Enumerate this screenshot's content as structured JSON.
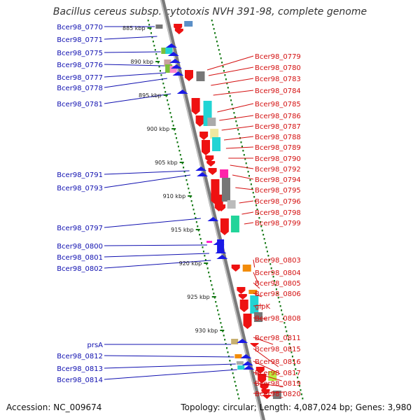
{
  "title": "Bacillus cereus subsp. cytotoxis NVH 391-98, complete genome",
  "footer": {
    "accession": "Accession: NC_009674",
    "summary": "Topology: circular; Length: 4,087,024 bp; Genes: 3,980"
  },
  "colors": {
    "forward_genes": "#ee1111",
    "reverse_genes": "#1a1ae6",
    "backbone": "#888888",
    "scale_ticks": "#117711",
    "label_left": "#1010b0",
    "label_right": "#d41010"
  },
  "kbp_labels": [
    {
      "text": "885 kbp",
      "kbp": 885
    },
    {
      "text": "890 kbp",
      "kbp": 890
    },
    {
      "text": "895 kbp",
      "kbp": 895
    },
    {
      "text": "900 kbp",
      "kbp": 900
    },
    {
      "text": "905 kbp",
      "kbp": 905
    },
    {
      "text": "910 kbp",
      "kbp": 910
    },
    {
      "text": "915 kbp",
      "kbp": 915
    },
    {
      "text": "920 kbp",
      "kbp": 920
    },
    {
      "text": "925 kbp",
      "kbp": 925
    },
    {
      "text": "930 kbp",
      "kbp": 930
    }
  ],
  "left_genes": [
    {
      "label": "Bcer98_0770"
    },
    {
      "label": "Bcer98_0771"
    },
    {
      "label": "Bcer98_0775"
    },
    {
      "label": "Bcer98_0776"
    },
    {
      "label": "Bcer98_0777"
    },
    {
      "label": "Bcer98_0778"
    },
    {
      "label": "Bcer98_0781"
    },
    {
      "label": "Bcer98_0791"
    },
    {
      "label": "Bcer98_0793"
    },
    {
      "label": "Bcer98_0797"
    },
    {
      "label": "Bcer98_0800"
    },
    {
      "label": "Bcer98_0801"
    },
    {
      "label": "Bcer98_0802"
    },
    {
      "label": "prsA"
    },
    {
      "label": "Bcer98_0812"
    },
    {
      "label": "Bcer98_0813"
    },
    {
      "label": "Bcer98_0814"
    }
  ],
  "right_genes": [
    {
      "label": "Bcer98_0779"
    },
    {
      "label": "Bcer98_0780"
    },
    {
      "label": "Bcer98_0783"
    },
    {
      "label": "Bcer98_0784"
    },
    {
      "label": "Bcer98_0785"
    },
    {
      "label": "Bcer98_0786"
    },
    {
      "label": "Bcer98_0787"
    },
    {
      "label": "Bcer98_0788"
    },
    {
      "label": "Bcer98_0789"
    },
    {
      "label": "Bcer98_0790"
    },
    {
      "label": "Bcer98_0792"
    },
    {
      "label": "Bcer98_0794"
    },
    {
      "label": "Bcer98_0795"
    },
    {
      "label": "Bcer98_0796"
    },
    {
      "label": "Bcer98_0798"
    },
    {
      "label": "Bcer98_0799"
    },
    {
      "label": "Bcer98_0803"
    },
    {
      "label": "Bcer98_0804"
    },
    {
      "label": "Bcer98_0805"
    },
    {
      "label": "Bcer98_0806"
    },
    {
      "label": "glpK"
    },
    {
      "label": "Bcer98_0808"
    },
    {
      "label": "Bcer98_0811"
    },
    {
      "label": "Bcer98_0815"
    },
    {
      "label": "Bcer98_0816"
    },
    {
      "label": "Bcer98_0817"
    },
    {
      "label": "Bcer98_0819"
    },
    {
      "label": "Bcer98_0820"
    }
  ]
}
